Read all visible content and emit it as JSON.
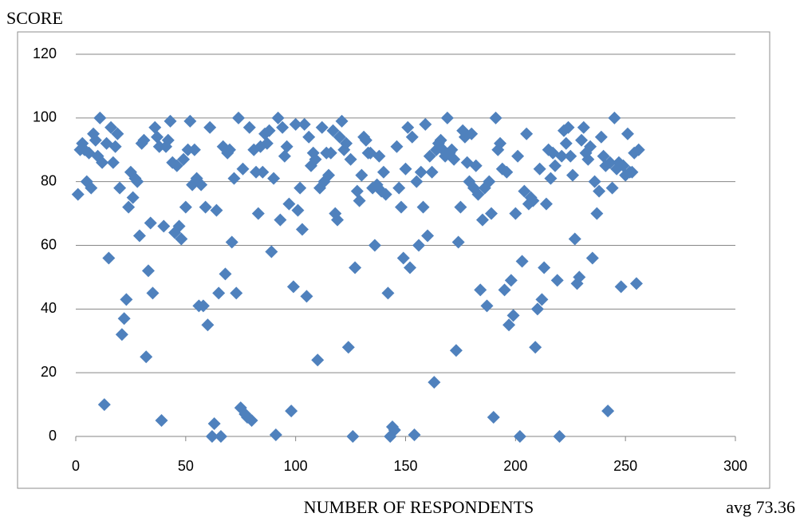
{
  "chart_data": {
    "type": "scatter",
    "title": "SCORE",
    "x_label": "NUMBER OF RESPONDENTS",
    "annotation": "avg 73.36",
    "color": "#4f81bd",
    "grid": true,
    "xlim": [
      0,
      300
    ],
    "xticks": [
      0,
      50,
      100,
      150,
      200,
      250,
      300
    ],
    "ylim": [
      0,
      120
    ],
    "yticks": [
      0,
      20,
      40,
      60,
      80,
      100,
      120
    ],
    "x": [
      1,
      2,
      3,
      4,
      5,
      6,
      7,
      8,
      9,
      10,
      11,
      12,
      13,
      14,
      15,
      16,
      17,
      18,
      19,
      20,
      21,
      22,
      23,
      24,
      25,
      26,
      27,
      28,
      29,
      30,
      31,
      32,
      33,
      34,
      35,
      36,
      37,
      38,
      39,
      40,
      41,
      42,
      43,
      44,
      45,
      46,
      47,
      48,
      49,
      50,
      51,
      52,
      53,
      54,
      55,
      56,
      57,
      58,
      59,
      60,
      61,
      62,
      63,
      64,
      65,
      66,
      67,
      68,
      69,
      70,
      71,
      72,
      73,
      74,
      75,
      76,
      77,
      78,
      79,
      80,
      81,
      82,
      83,
      84,
      85,
      86,
      87,
      88,
      89,
      90,
      91,
      92,
      93,
      94,
      95,
      96,
      97,
      98,
      99,
      100,
      101,
      102,
      103,
      104,
      105,
      106,
      107,
      108,
      109,
      110,
      111,
      112,
      113,
      114,
      115,
      116,
      117,
      118,
      119,
      120,
      121,
      122,
      123,
      124,
      125,
      126,
      127,
      128,
      129,
      130,
      131,
      132,
      133,
      134,
      135,
      136,
      137,
      138,
      139,
      140,
      141,
      142,
      143,
      144,
      145,
      146,
      147,
      148,
      149,
      150,
      151,
      152,
      153,
      154,
      155,
      156,
      157,
      158,
      159,
      160,
      161,
      162,
      163,
      164,
      165,
      166,
      167,
      168,
      169,
      170,
      171,
      172,
      173,
      174,
      175,
      176,
      177,
      178,
      179,
      180,
      181,
      182,
      183,
      184,
      185,
      186,
      187,
      188,
      189,
      190,
      191,
      192,
      193,
      194,
      195,
      196,
      197,
      198,
      199,
      200,
      201,
      202,
      203,
      204,
      205,
      206,
      207,
      208,
      209,
      210,
      211,
      212,
      213,
      214,
      215,
      216,
      217,
      218,
      219,
      220,
      221,
      222,
      223,
      224,
      225,
      226,
      227,
      228,
      229,
      230,
      231,
      232,
      233,
      234,
      235,
      236,
      237,
      238,
      239,
      240,
      241,
      242,
      243,
      244,
      245,
      246,
      247,
      248,
      249,
      250,
      251,
      252,
      253,
      254,
      255,
      256
    ],
    "y": [
      76,
      90,
      92,
      90,
      80,
      89,
      78,
      95,
      93,
      88,
      100,
      86,
      10,
      92,
      56,
      97,
      86,
      91,
      95,
      78,
      32,
      37,
      43,
      72,
      83,
      75,
      81,
      80,
      63,
      92,
      93,
      25,
      52,
      67,
      45,
      97,
      94,
      91,
      5,
      66,
      91,
      93,
      99,
      86,
      64,
      85,
      66,
      62,
      87,
      72,
      90,
      99,
      79,
      90,
      81,
      41,
      79,
      41,
      72,
      35,
      97,
      0,
      4,
      71,
      45,
      0,
      91,
      51,
      89,
      90,
      61,
      81,
      45,
      100,
      9,
      84,
      7,
      6,
      97,
      5,
      90,
      83,
      70,
      91,
      83,
      95,
      92,
      96,
      58,
      81,
      0.5,
      100,
      68,
      97,
      88,
      91,
      73,
      8,
      47,
      98,
      71,
      78,
      65,
      98,
      44,
      94,
      85,
      89,
      87,
      24,
      78,
      97,
      80,
      89,
      82,
      89,
      96,
      70,
      68,
      94,
      99,
      90,
      92,
      28,
      87,
      0,
      53,
      77,
      74,
      82,
      94,
      93,
      89,
      89,
      78,
      60,
      79,
      88,
      77,
      83,
      76,
      45,
      0,
      3,
      2,
      91,
      78,
      72,
      56,
      84,
      97,
      53,
      94,
      0.5,
      80,
      60,
      83,
      72,
      98,
      63,
      88,
      83,
      17,
      90,
      92,
      93,
      90,
      88,
      100,
      89,
      90,
      87,
      27,
      61,
      72,
      96,
      94,
      86,
      80,
      95,
      78,
      85,
      76,
      46,
      68,
      78,
      41,
      80,
      70,
      6,
      100,
      90,
      92,
      84,
      46,
      83,
      35,
      49,
      38,
      70,
      88,
      0,
      55,
      77,
      95,
      73,
      75,
      74,
      28,
      40,
      84,
      43,
      53,
      73,
      90,
      81,
      89,
      85,
      49,
      0,
      88,
      96,
      92,
      97,
      88,
      82,
      62,
      48,
      50,
      93,
      97,
      89,
      87,
      91,
      56,
      80,
      70,
      77,
      94,
      88,
      85,
      8,
      86,
      78,
      100,
      84,
      86,
      47,
      85,
      82,
      95,
      83,
      83,
      89,
      48,
      90
    ]
  }
}
